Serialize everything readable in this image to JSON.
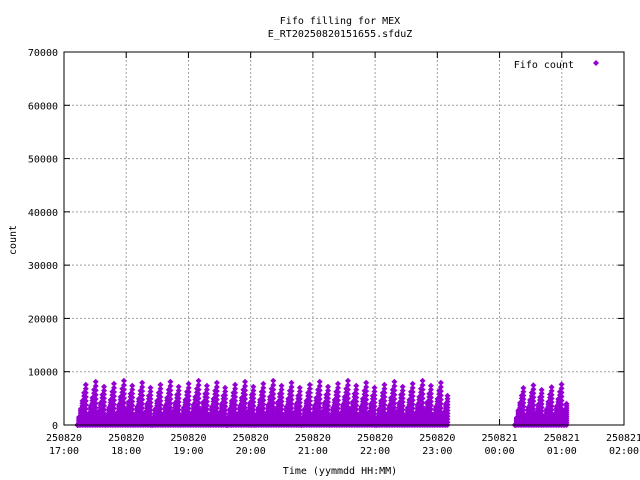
{
  "chart_data": {
    "type": "scatter",
    "title": "Fifo filling for MEX",
    "subtitle": "E_RT20250820151655.sfduZ",
    "xlabel": "Time (yymmdd HH:MM)",
    "ylabel": "count",
    "xlim": [
      "2025-08-20 17:00",
      "2025-08-21 02:00"
    ],
    "ylim": [
      0,
      70000
    ],
    "grid": true,
    "legend_position": "top-right",
    "x_ticks": [
      {
        "date": "250820",
        "time": "17:00"
      },
      {
        "date": "250820",
        "time": "18:00"
      },
      {
        "date": "250820",
        "time": "19:00"
      },
      {
        "date": "250820",
        "time": "20:00"
      },
      {
        "date": "250820",
        "time": "21:00"
      },
      {
        "date": "250820",
        "time": "22:00"
      },
      {
        "date": "250820",
        "time": "23:00"
      },
      {
        "date": "250821",
        "time": "00:00"
      },
      {
        "date": "250821",
        "time": "01:00"
      },
      {
        "date": "250821",
        "time": "02:00"
      }
    ],
    "y_ticks": [
      "0",
      "10000",
      "20000",
      "30000",
      "40000",
      "50000",
      "60000",
      "70000"
    ],
    "series": [
      {
        "name": "Fifo count",
        "color": "#9400d3",
        "marker": "diamond",
        "segments": [
          {
            "start": "2025-08-20 17:13",
            "end": "2025-08-20 23:10",
            "max_count": 8500
          },
          {
            "start": "2025-08-21 00:15",
            "end": "2025-08-21 01:05",
            "max_count": 7800
          }
        ]
      }
    ]
  }
}
